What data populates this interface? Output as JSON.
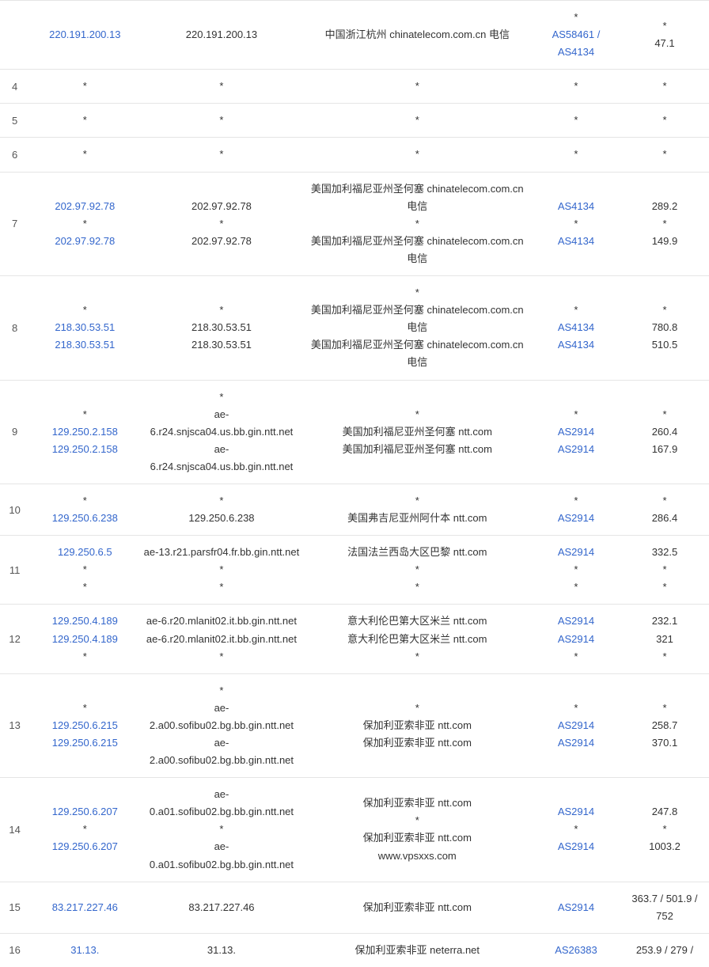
{
  "rows": [
    {
      "hop": "",
      "ip_lines": [
        {
          "text": "220.191.200.13",
          "link": true
        }
      ],
      "host_lines": [
        {
          "text": "220.191.200.13"
        }
      ],
      "loc_lines": [
        {
          "text": "中国浙江杭州 chinatelecom.com.cn 电信"
        }
      ],
      "as_lines": [
        {
          "text": "*"
        },
        {
          "text": "AS58461 / AS4134",
          "link": true
        }
      ],
      "rtt_lines": [
        {
          "text": "*"
        },
        {
          "text": "47.1"
        }
      ]
    },
    {
      "hop": "4",
      "ip_lines": [
        {
          "text": "*"
        }
      ],
      "host_lines": [
        {
          "text": "*"
        }
      ],
      "loc_lines": [
        {
          "text": "*"
        }
      ],
      "as_lines": [
        {
          "text": "*"
        }
      ],
      "rtt_lines": [
        {
          "text": "*"
        }
      ]
    },
    {
      "hop": "5",
      "ip_lines": [
        {
          "text": "*"
        }
      ],
      "host_lines": [
        {
          "text": "*"
        }
      ],
      "loc_lines": [
        {
          "text": "*"
        }
      ],
      "as_lines": [
        {
          "text": "*"
        }
      ],
      "rtt_lines": [
        {
          "text": "*"
        }
      ]
    },
    {
      "hop": "6",
      "ip_lines": [
        {
          "text": "*"
        }
      ],
      "host_lines": [
        {
          "text": "*"
        }
      ],
      "loc_lines": [
        {
          "text": "*"
        }
      ],
      "as_lines": [
        {
          "text": "*"
        }
      ],
      "rtt_lines": [
        {
          "text": "*"
        }
      ]
    },
    {
      "hop": "7",
      "ip_lines": [
        {
          "text": "202.97.92.78",
          "link": true
        },
        {
          "text": "*"
        },
        {
          "text": "202.97.92.78",
          "link": true
        }
      ],
      "host_lines": [
        {
          "text": "202.97.92.78"
        },
        {
          "text": "*"
        },
        {
          "text": "202.97.92.78"
        }
      ],
      "loc_lines": [
        {
          "text": "美国加利福尼亚州圣何塞 chinatelecom.com.cn 电信"
        },
        {
          "text": "*"
        },
        {
          "text": "美国加利福尼亚州圣何塞 chinatelecom.com.cn 电信"
        }
      ],
      "as_lines": [
        {
          "text": "AS4134",
          "link": true
        },
        {
          "text": "*"
        },
        {
          "text": "AS4134",
          "link": true
        }
      ],
      "rtt_lines": [
        {
          "text": "289.2"
        },
        {
          "text": "*"
        },
        {
          "text": "149.9"
        }
      ]
    },
    {
      "hop": "8",
      "ip_lines": [
        {
          "text": "*"
        },
        {
          "text": "218.30.53.51",
          "link": true
        },
        {
          "text": "218.30.53.51",
          "link": true
        }
      ],
      "host_lines": [
        {
          "text": "*"
        },
        {
          "text": "218.30.53.51"
        },
        {
          "text": "218.30.53.51"
        }
      ],
      "loc_lines": [
        {
          "text": "*"
        },
        {
          "text": "美国加利福尼亚州圣何塞 chinatelecom.com.cn 电信"
        },
        {
          "text": "美国加利福尼亚州圣何塞 chinatelecom.com.cn 电信"
        }
      ],
      "as_lines": [
        {
          "text": "*"
        },
        {
          "text": "AS4134",
          "link": true
        },
        {
          "text": "AS4134",
          "link": true
        }
      ],
      "rtt_lines": [
        {
          "text": "*"
        },
        {
          "text": "780.8"
        },
        {
          "text": "510.5"
        }
      ]
    },
    {
      "hop": "9",
      "ip_lines": [
        {
          "text": "*"
        },
        {
          "text": "129.250.2.158",
          "link": true
        },
        {
          "text": "129.250.2.158",
          "link": true
        }
      ],
      "host_lines": [
        {
          "text": "*"
        },
        {
          "text": "ae-6.r24.snjsca04.us.bb.gin.ntt.net"
        },
        {
          "text": "ae-6.r24.snjsca04.us.bb.gin.ntt.net"
        }
      ],
      "loc_lines": [
        {
          "text": "*"
        },
        {
          "text": "美国加利福尼亚州圣何塞 ntt.com"
        },
        {
          "text": "美国加利福尼亚州圣何塞 ntt.com"
        }
      ],
      "as_lines": [
        {
          "text": "*"
        },
        {
          "text": "AS2914",
          "link": true
        },
        {
          "text": "AS2914",
          "link": true
        }
      ],
      "rtt_lines": [
        {
          "text": "*"
        },
        {
          "text": "260.4"
        },
        {
          "text": "167.9"
        }
      ]
    },
    {
      "hop": "10",
      "ip_lines": [
        {
          "text": "*"
        },
        {
          "text": "129.250.6.238",
          "link": true
        }
      ],
      "host_lines": [
        {
          "text": "*"
        },
        {
          "text": "129.250.6.238"
        }
      ],
      "loc_lines": [
        {
          "text": "*"
        },
        {
          "text": "美国弗吉尼亚州阿什本 ntt.com"
        }
      ],
      "as_lines": [
        {
          "text": "*"
        },
        {
          "text": "AS2914",
          "link": true
        }
      ],
      "rtt_lines": [
        {
          "text": "*"
        },
        {
          "text": "286.4"
        }
      ]
    },
    {
      "hop": "11",
      "ip_lines": [
        {
          "text": "129.250.6.5",
          "link": true
        },
        {
          "text": "*"
        },
        {
          "text": "*"
        }
      ],
      "host_lines": [
        {
          "text": "ae-13.r21.parsfr04.fr.bb.gin.ntt.net"
        },
        {
          "text": "*"
        },
        {
          "text": "*"
        }
      ],
      "loc_lines": [
        {
          "text": "法国法兰西岛大区巴黎 ntt.com"
        },
        {
          "text": "*"
        },
        {
          "text": "*"
        }
      ],
      "as_lines": [
        {
          "text": "AS2914",
          "link": true
        },
        {
          "text": "*"
        },
        {
          "text": "*"
        }
      ],
      "rtt_lines": [
        {
          "text": "332.5"
        },
        {
          "text": "*"
        },
        {
          "text": "*"
        }
      ]
    },
    {
      "hop": "12",
      "ip_lines": [
        {
          "text": "129.250.4.189",
          "link": true
        },
        {
          "text": "129.250.4.189",
          "link": true
        },
        {
          "text": "*"
        }
      ],
      "host_lines": [
        {
          "text": "ae-6.r20.mlanit02.it.bb.gin.ntt.net"
        },
        {
          "text": "ae-6.r20.mlanit02.it.bb.gin.ntt.net"
        },
        {
          "text": "*"
        }
      ],
      "loc_lines": [
        {
          "text": "意大利伦巴第大区米兰 ntt.com"
        },
        {
          "text": "意大利伦巴第大区米兰 ntt.com"
        },
        {
          "text": "*"
        }
      ],
      "as_lines": [
        {
          "text": "AS2914",
          "link": true
        },
        {
          "text": "AS2914",
          "link": true
        },
        {
          "text": "*"
        }
      ],
      "rtt_lines": [
        {
          "text": "232.1"
        },
        {
          "text": "321"
        },
        {
          "text": "*"
        }
      ]
    },
    {
      "hop": "13",
      "ip_lines": [
        {
          "text": "*"
        },
        {
          "text": "129.250.6.215",
          "link": true
        },
        {
          "text": "129.250.6.215",
          "link": true
        }
      ],
      "host_lines": [
        {
          "text": "*"
        },
        {
          "text": "ae-2.a00.sofibu02.bg.bb.gin.ntt.net"
        },
        {
          "text": "ae-2.a00.sofibu02.bg.bb.gin.ntt.net"
        }
      ],
      "loc_lines": [
        {
          "text": "*"
        },
        {
          "text": "保加利亚索非亚 ntt.com"
        },
        {
          "text": "保加利亚索非亚 ntt.com"
        }
      ],
      "as_lines": [
        {
          "text": "*"
        },
        {
          "text": "AS2914",
          "link": true
        },
        {
          "text": "AS2914",
          "link": true
        }
      ],
      "rtt_lines": [
        {
          "text": "*"
        },
        {
          "text": "258.7"
        },
        {
          "text": "370.1"
        }
      ]
    },
    {
      "hop": "14",
      "ip_lines": [
        {
          "text": "129.250.6.207",
          "link": true
        },
        {
          "text": "*"
        },
        {
          "text": "129.250.6.207",
          "link": true
        }
      ],
      "host_lines": [
        {
          "text": "ae-0.a01.sofibu02.bg.bb.gin.ntt.net"
        },
        {
          "text": "*"
        },
        {
          "text": "ae-0.a01.sofibu02.bg.bb.gin.ntt.net"
        }
      ],
      "loc_lines": [
        {
          "text": "保加利亚索非亚 ntt.com"
        },
        {
          "text": "*"
        },
        {
          "text": "保加利亚索非亚 ntt.com"
        },
        {
          "text": "www.vpsxxs.com"
        }
      ],
      "as_lines": [
        {
          "text": "AS2914",
          "link": true
        },
        {
          "text": "*"
        },
        {
          "text": "AS2914",
          "link": true
        }
      ],
      "rtt_lines": [
        {
          "text": "247.8"
        },
        {
          "text": "*"
        },
        {
          "text": "1003.2"
        }
      ]
    },
    {
      "hop": "15",
      "ip_lines": [
        {
          "text": "83.217.227.46",
          "link": true
        }
      ],
      "host_lines": [
        {
          "text": "83.217.227.46"
        }
      ],
      "loc_lines": [
        {
          "text": "保加利亚索非亚 ntt.com"
        }
      ],
      "as_lines": [
        {
          "text": "AS2914",
          "link": true
        }
      ],
      "rtt_lines": [
        {
          "text": "363.7 / 501.9 / 752"
        }
      ]
    },
    {
      "hop": "16",
      "ip_lines": [
        {
          "text": "31.13.",
          "link": true
        }
      ],
      "host_lines": [
        {
          "text": "31.13."
        }
      ],
      "loc_lines": [
        {
          "text": "保加利亚索非亚 neterra.net"
        }
      ],
      "as_lines": [
        {
          "text": "AS26383",
          "link": true
        }
      ],
      "rtt_lines": [
        {
          "text": "253.9 / 279 /"
        }
      ]
    }
  ]
}
